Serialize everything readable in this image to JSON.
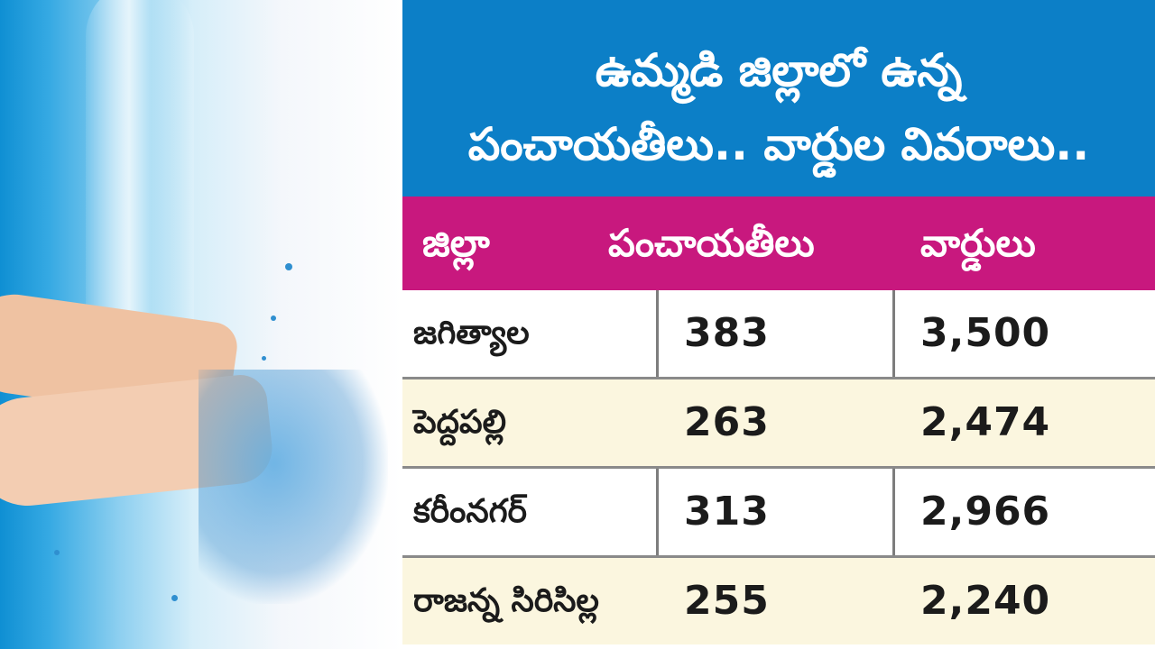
{
  "title": {
    "line1": "ఉమ్మడి జిల్లాలో ఉన్న",
    "line2": "పంచాయతీలు.. వార్డుల వివరాలు.."
  },
  "table": {
    "headers": [
      "జిల్లా",
      "పంచాయతీలు",
      "వార్డులు"
    ],
    "rows": [
      {
        "district": "జగిత్యాల",
        "panchayats": "383",
        "wards": "3,500"
      },
      {
        "district": "పెద్దపల్లి",
        "panchayats": "263",
        "wards": "2,474"
      },
      {
        "district": "కరీంనగర్",
        "panchayats": "313",
        "wards": "2,966"
      },
      {
        "district": "రాజన్న సిరిసిల్ల",
        "panchayats": "255",
        "wards": "2,240"
      }
    ]
  },
  "colors": {
    "title_bg": "#0c7fc7",
    "header_bg": "#c8187e",
    "row_alt_bg": "#fbf6df"
  },
  "image": {
    "subject": "hands-catching-water-icon"
  }
}
